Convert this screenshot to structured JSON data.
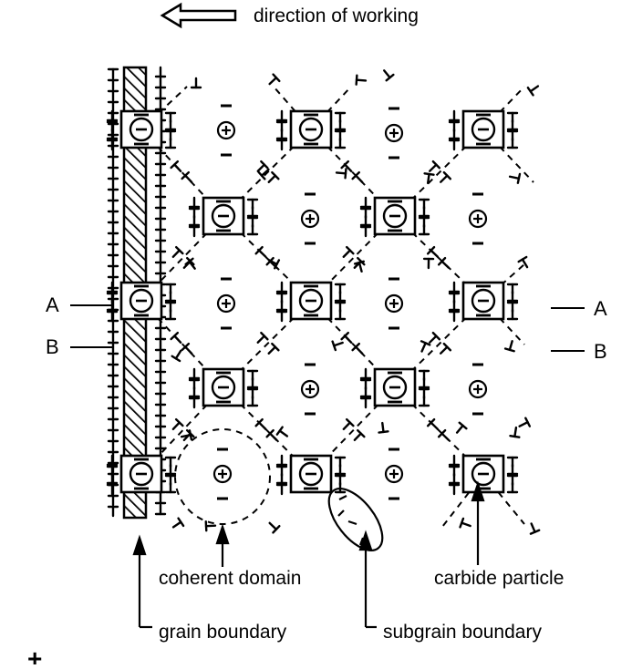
{
  "header": {
    "direction_label": "direction of working",
    "arrow_icon": "left-hollow-arrow-icon"
  },
  "side_labels": {
    "left_a": "A",
    "left_b": "B",
    "right_a": "A",
    "right_b": "B"
  },
  "callouts": {
    "coherent_domain": "coherent domain",
    "grain_boundary": "grain boundary",
    "subgrain_boundary": "subgrain boundary",
    "carbide_particle": "carbide particle"
  },
  "symbols": {
    "carbide_charge": "⊖",
    "domain_charge": "⊕",
    "dislocation": "⊥"
  },
  "footer": {
    "plus_mark": "+"
  }
}
